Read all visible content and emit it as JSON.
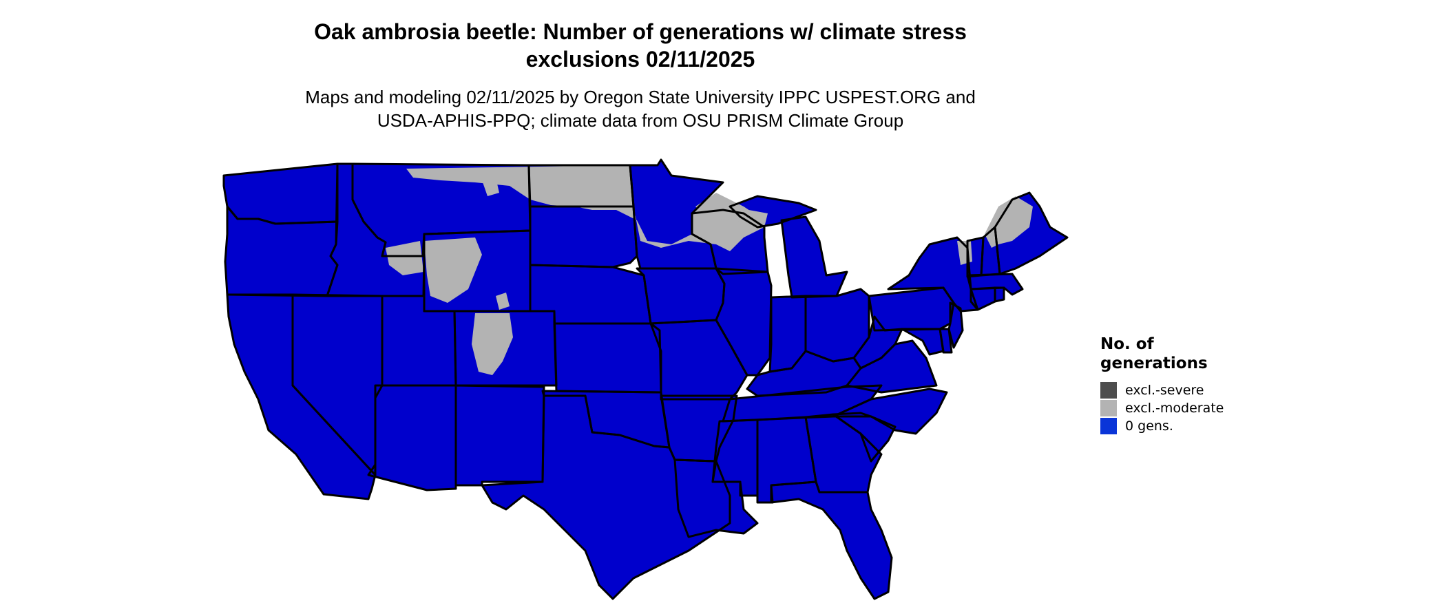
{
  "title": {
    "line1": "Oak ambrosia beetle: Number of generations w/ climate stress",
    "line2": "exclusions 02/11/2025"
  },
  "subtitle": {
    "line1": "Maps and modeling 02/11/2025 by Oregon State University IPPC USPEST.ORG and",
    "line2": "USDA-APHIS-PPQ; climate data from OSU PRISM Climate Group"
  },
  "legend": {
    "title_line1": "No. of",
    "title_line2": "generations",
    "items": [
      {
        "label": "excl.-severe",
        "color": "#4d4d4d"
      },
      {
        "label": "excl.-moderate",
        "color": "#b3b3b3"
      },
      {
        "label": "0 gens.",
        "color": "#0a35d8"
      }
    ]
  },
  "map_colors": {
    "generations_fill": "#0000cc",
    "exclusion_moderate_fill": "#b3b3b3",
    "state_borders": "#000000"
  },
  "map_regions": [
    "Washington",
    "Oregon",
    "California",
    "Idaho",
    "Nevada",
    "Montana",
    "Wyoming",
    "Utah",
    "Arizona",
    "Colorado",
    "New Mexico",
    "North Dakota",
    "South Dakota",
    "Nebraska",
    "Kansas",
    "Oklahoma",
    "Texas",
    "Minnesota",
    "Iowa",
    "Missouri",
    "Arkansas",
    "Louisiana",
    "Wisconsin",
    "Illinois",
    "Michigan",
    "Indiana",
    "Ohio",
    "Kentucky",
    "Tennessee",
    "Mississippi",
    "Alabama",
    "Georgia",
    "Florida",
    "South Carolina",
    "North Carolina",
    "Virginia",
    "West Virginia",
    "Pennsylvania",
    "New York",
    "Maryland",
    "Delaware",
    "New Jersey",
    "Connecticut",
    "Rhode Island",
    "Massachusetts",
    "Vermont",
    "New Hampshire",
    "Maine"
  ]
}
